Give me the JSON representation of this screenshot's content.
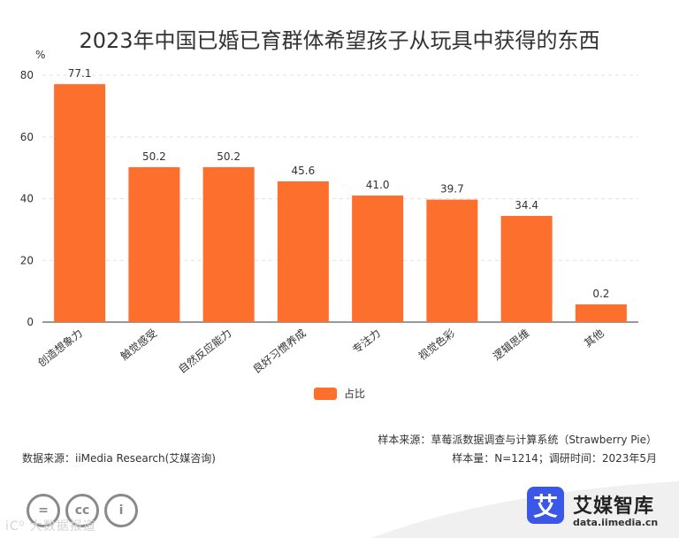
{
  "title": "2023年中国已婚已育群体希望孩子从玩具中获得的东西",
  "chart_data": {
    "type": "bar",
    "unit_label": "%",
    "categories": [
      "创造想象力",
      "触觉感受",
      "自然反应能力",
      "良好习惯养成",
      "专注力",
      "视觉色彩",
      "逻辑思维",
      "其他"
    ],
    "series": [
      {
        "name": "占比",
        "values": [
          77.1,
          50.2,
          50.2,
          45.6,
          41.0,
          39.7,
          34.4,
          0.2
        ],
        "color": "#fd6f2c"
      }
    ],
    "value_labels": [
      "77.1",
      "50.2",
      "50.2",
      "45.6",
      "41.0",
      "39.7",
      "34.4",
      "0.2"
    ],
    "yticks": [
      0,
      20,
      40,
      60,
      80
    ],
    "ylim": [
      0,
      80
    ],
    "grid": true,
    "legend_position": "bottom"
  },
  "legend": {
    "label": "占比",
    "color": "#fd6f2c"
  },
  "source": {
    "left": "数据来源：iiMedia Research(艾媒咨询)",
    "right_line1": "样本来源：草莓派数据调查与计算系统（Strawberry Pie）",
    "right_line2": "样本量：N=1214；调研时间：2023年5月"
  },
  "brand": {
    "logo_char": "艾",
    "name": "艾媒智库",
    "url": "data.iimedia.cn",
    "watermark": "iC⁰ 大数据报道"
  },
  "license_icons": [
    "cc-nd-icon",
    "cc-icon",
    "cc-by-icon"
  ]
}
